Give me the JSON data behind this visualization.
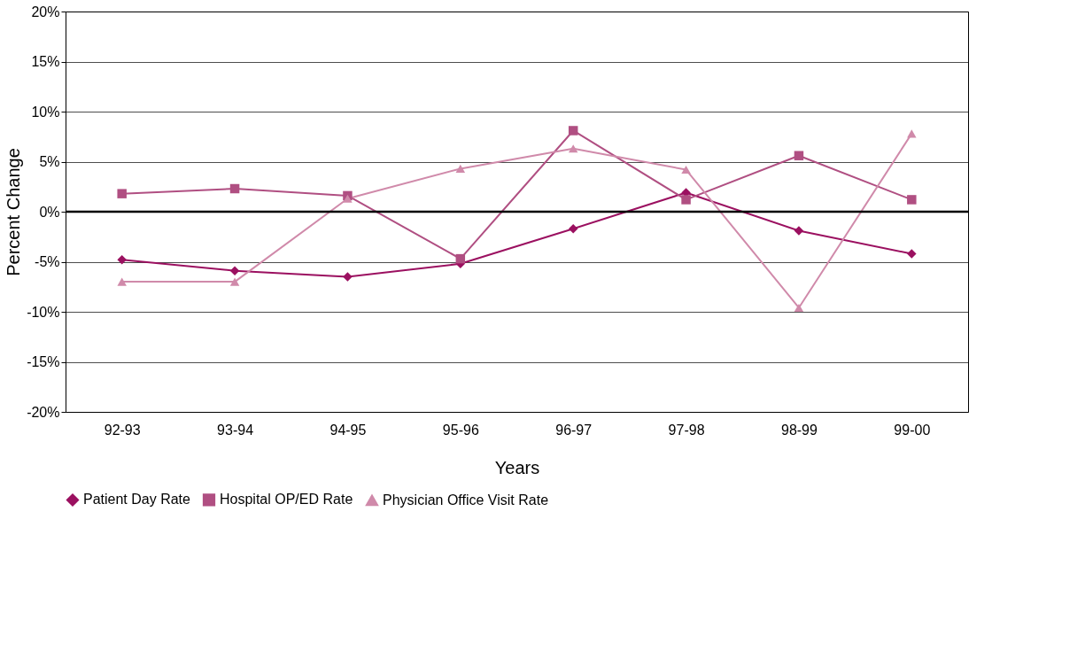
{
  "chart_data": {
    "type": "line",
    "xlabel": "Years",
    "ylabel": "Percent Change",
    "categories": [
      "92-93",
      "93-94",
      "94-95",
      "95-96",
      "96-97",
      "97-98",
      "98-99",
      "99-00"
    ],
    "series": [
      {
        "name": "Patient Day Rate",
        "color": "#9b1060",
        "marker": "diamond",
        "values": [
          -4.8,
          -5.9,
          -6.5,
          -5.2,
          -1.7,
          1.9,
          -1.9,
          -4.2
        ]
      },
      {
        "name": "Hospital OP/ED Rate",
        "color": "#b04f82",
        "marker": "square",
        "values": [
          1.8,
          2.3,
          1.6,
          -4.7,
          8.1,
          1.2,
          5.6,
          1.2
        ]
      },
      {
        "name": "Physician Office Visit Rate",
        "color": "#d08aaa",
        "marker": "triangle",
        "values": [
          -7.0,
          -7.0,
          1.3,
          4.3,
          6.3,
          4.2,
          -9.6,
          7.8
        ]
      }
    ],
    "ylim": [
      -20,
      20
    ],
    "yticks": [
      {
        "value": -20,
        "label": "-20%"
      },
      {
        "value": -15,
        "label": "-15%"
      },
      {
        "value": -10,
        "label": "-10%"
      },
      {
        "value": -5,
        "label": "-5%"
      },
      {
        "value": 0,
        "label": "0%"
      },
      {
        "value": 5,
        "label": "5%"
      },
      {
        "value": 10,
        "label": "10%"
      },
      {
        "value": 15,
        "label": "15%"
      },
      {
        "value": 20,
        "label": "20%"
      }
    ],
    "ref_lines": [
      {
        "axis": "y",
        "value": 0,
        "color": "#000000"
      }
    ],
    "grid": "y",
    "legend": "bottom",
    "line_style": "solid"
  }
}
